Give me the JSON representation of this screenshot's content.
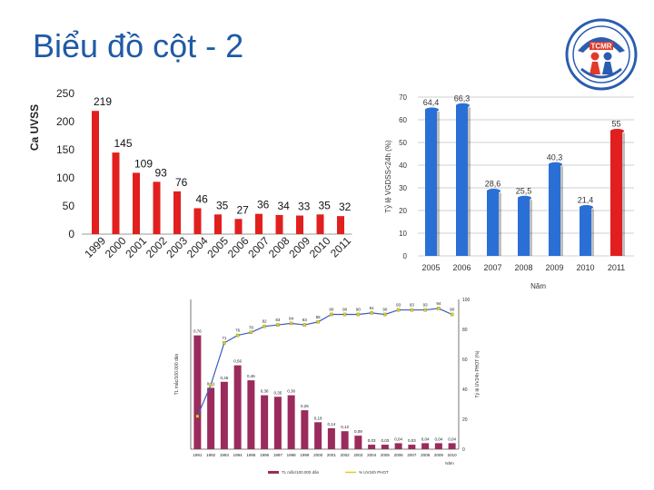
{
  "page": {
    "title": "Biểu đồ cột - 2"
  },
  "colors": {
    "title": "#1f5aa6",
    "bar_red": "#e21f1f",
    "bar_blue": "#2a6fd6",
    "bar_maroon": "#9b2b5c",
    "line_yellow": "#d8cf25",
    "line_blue": "#3b5cc4"
  },
  "logo": {
    "text": "TCMR"
  },
  "chart_data": [
    {
      "type": "bar",
      "categories": [
        "1999",
        "2000",
        "2001",
        "2002",
        "2003",
        "2004",
        "2005",
        "2006",
        "2007",
        "2008",
        "2009",
        "2010",
        "2011"
      ],
      "values": [
        219,
        145,
        109,
        93,
        76,
        46,
        35,
        27,
        36,
        34,
        33,
        35,
        32
      ],
      "data_labels": [
        "219",
        "145",
        "109",
        "93",
        "76",
        "46",
        "35",
        "27",
        "36",
        "34",
        "33",
        "35",
        "32"
      ],
      "yticks": [
        "0",
        "50",
        "100",
        "150",
        "200",
        "250"
      ],
      "ylabel": "Ca UVSS",
      "ylim": [
        0,
        250
      ],
      "color": "#e21f1f",
      "grid": false
    },
    {
      "type": "bar",
      "categories": [
        "2005",
        "2006",
        "2007",
        "2008",
        "2009",
        "2010",
        "2011"
      ],
      "values": [
        64.4,
        66.3,
        28.6,
        25.5,
        40.3,
        21.4,
        55
      ],
      "data_labels": [
        "64,4",
        "66,3",
        "28,6",
        "25,5",
        "40,3",
        "21,4",
        "55"
      ],
      "yticks": [
        "0",
        "10",
        "20",
        "30",
        "40",
        "50",
        "60",
        "70"
      ],
      "ylabel": "Tỷ lệ VGDSS<24h (%)",
      "xlabel": "Năm",
      "ylim": [
        0,
        70
      ],
      "bar_colors": [
        "#2a6fd6",
        "#2a6fd6",
        "#2a6fd6",
        "#2a6fd6",
        "#2a6fd6",
        "#2a6fd6",
        "#e21f1f"
      ],
      "grid": true
    },
    {
      "type": "bar",
      "categories": [
        "1991",
        "1992",
        "1993",
        "1994",
        "1995",
        "1996",
        "1997",
        "1998",
        "1999",
        "2000",
        "2001",
        "2002",
        "2003",
        "2004",
        "2005",
        "2006",
        "2007",
        "2008",
        "2009",
        "2010"
      ],
      "series": [
        {
          "name": "TL mắc/100.000 dân",
          "kind": "bar",
          "axis": "left",
          "values": [
            0.76,
            0.41,
            0.45,
            0.56,
            0.46,
            0.36,
            0.35,
            0.36,
            0.26,
            0.18,
            0.14,
            0.12,
            0.09,
            0.03,
            0.03,
            0.04,
            0.03,
            0.04,
            0.04,
            0.04
          ],
          "labels": [
            "0,76",
            "0,41",
            "0,45",
            "0,56",
            "0,46",
            "0,36",
            "0,35",
            "0,36",
            "0,26",
            "0,18",
            "0,14",
            "0,12",
            "0,09",
            "0,03",
            "0,03",
            "0,04",
            "0,03",
            "0,04",
            "0,04",
            "0,04"
          ]
        },
        {
          "name": "% UV24h PHOT",
          "kind": "line",
          "axis": "right",
          "values": [
            22,
            43,
            71,
            76,
            78,
            82,
            83,
            84,
            83,
            85,
            90,
            90,
            90,
            91,
            90,
            93,
            93,
            93,
            94,
            90
          ],
          "labels": [
            "",
            "",
            "71",
            "76",
            "78",
            "82",
            "83",
            "84",
            "83",
            "85",
            "90",
            "90",
            "90",
            "91",
            "90",
            "93",
            "93",
            "93",
            "94",
            "90"
          ]
        }
      ],
      "ylabel_left": "TL mắc/100.000 dân",
      "ylabel_right": "Tỷ lệ UV24h PHOT (%)",
      "xlabel": "Năm",
      "ylim_left": [
        0,
        1
      ],
      "ylim_right": [
        0,
        100
      ],
      "yticks_right": [
        "0",
        "20",
        "40",
        "60",
        "80",
        "100"
      ]
    }
  ]
}
